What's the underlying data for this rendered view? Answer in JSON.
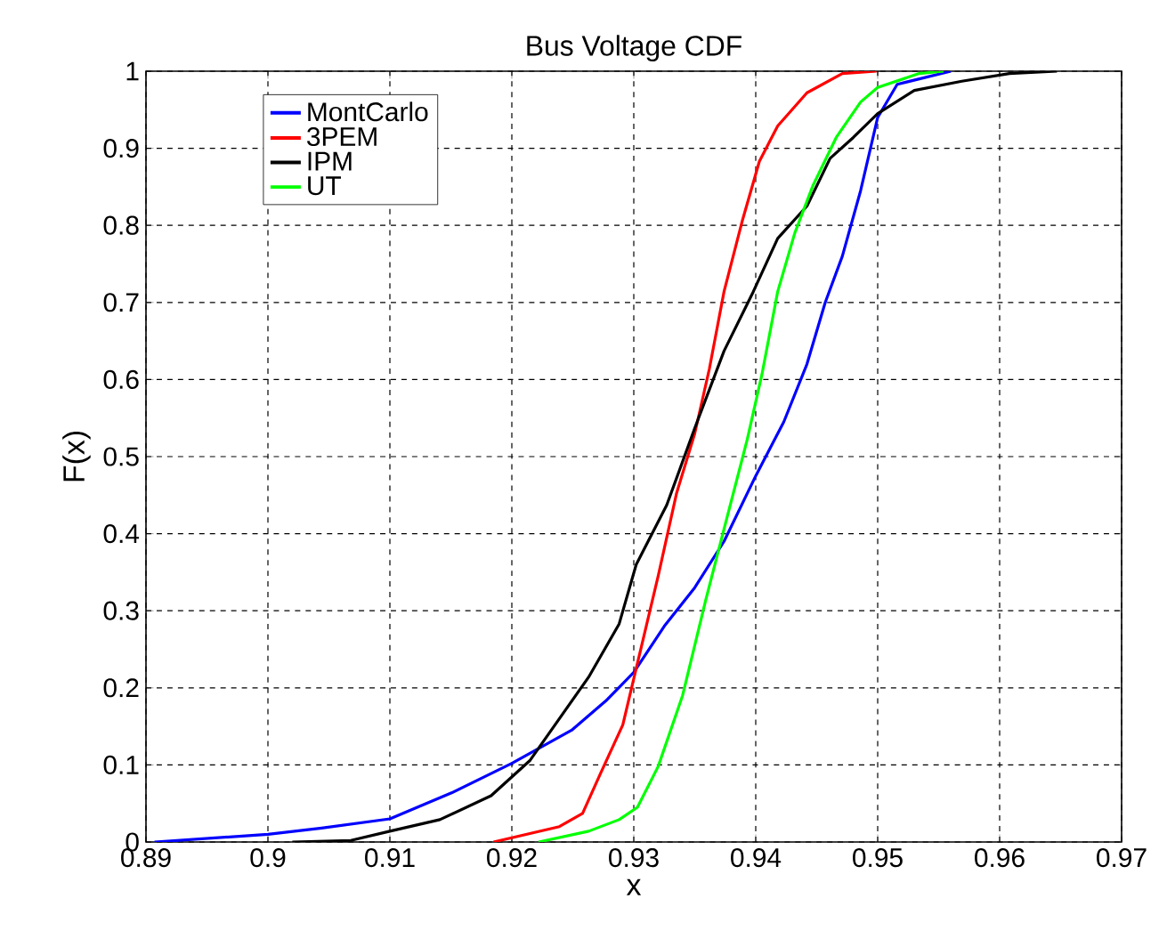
{
  "chart_data": {
    "type": "line",
    "title": "Bus Voltage CDF",
    "xlabel": "x",
    "ylabel": "F(x)",
    "xlim": [
      0.89,
      0.97
    ],
    "xticks": [
      0.89,
      0.9,
      0.91,
      0.92,
      0.93,
      0.94,
      0.95,
      0.96,
      0.97
    ],
    "ylim": [
      0,
      1
    ],
    "yticks": [
      0,
      0.1,
      0.2,
      0.3,
      0.4,
      0.5,
      0.6,
      0.7,
      0.8,
      0.9,
      1
    ],
    "grid": true,
    "legend": "top left",
    "line_style": "solid",
    "marker": "none",
    "series": [
      {
        "name": "MontCarlo",
        "color": "#0000ff",
        "x": [
          0.8907,
          0.9,
          0.9044,
          0.91,
          0.9151,
          0.92,
          0.9249,
          0.9277,
          0.93,
          0.9325,
          0.935,
          0.9374,
          0.94,
          0.9423,
          0.9442,
          0.9457,
          0.9471,
          0.9486,
          0.95,
          0.9516,
          0.956
        ],
        "values": [
          0,
          0.01,
          0.018,
          0.03,
          0.064,
          0.102,
          0.145,
          0.183,
          0.22,
          0.28,
          0.33,
          0.39,
          0.475,
          0.545,
          0.62,
          0.7,
          0.76,
          0.845,
          0.94,
          0.983,
          1
        ]
      },
      {
        "name": "3PEM",
        "color": "#ff0000",
        "x": [
          0.9185,
          0.9239,
          0.9258,
          0.9273,
          0.9291,
          0.9306,
          0.932,
          0.9335,
          0.935,
          0.9362,
          0.9374,
          0.9389,
          0.9403,
          0.9418,
          0.9442,
          0.9471,
          0.9499
        ],
        "values": [
          0,
          0.02,
          0.037,
          0.09,
          0.152,
          0.252,
          0.345,
          0.452,
          0.53,
          0.614,
          0.714,
          0.806,
          0.883,
          0.929,
          0.972,
          0.997,
          1
        ]
      },
      {
        "name": "IPM",
        "color": "#000000",
        "x": [
          0.902,
          0.9068,
          0.91,
          0.9141,
          0.9183,
          0.9215,
          0.9239,
          0.9263,
          0.9288,
          0.9302,
          0.9327,
          0.935,
          0.9374,
          0.9398,
          0.9418,
          0.9442,
          0.9461,
          0.948,
          0.95,
          0.953,
          0.9569,
          0.9608,
          0.9647
        ],
        "values": [
          0,
          0.002,
          0.014,
          0.029,
          0.06,
          0.106,
          0.16,
          0.214,
          0.283,
          0.36,
          0.437,
          0.537,
          0.637,
          0.714,
          0.783,
          0.825,
          0.887,
          0.914,
          0.945,
          0.975,
          0.987,
          0.997,
          1
        ]
      },
      {
        "name": "UT",
        "color": "#00ff00",
        "x": [
          0.9222,
          0.9263,
          0.9288,
          0.9303,
          0.932,
          0.934,
          0.9359,
          0.9374,
          0.9393,
          0.9405,
          0.9418,
          0.9432,
          0.9447,
          0.9466,
          0.9486,
          0.95,
          0.9534,
          0.9554
        ],
        "values": [
          0,
          0.014,
          0.029,
          0.045,
          0.098,
          0.19,
          0.314,
          0.406,
          0.522,
          0.606,
          0.714,
          0.79,
          0.852,
          0.914,
          0.96,
          0.979,
          0.997,
          1
        ]
      }
    ]
  }
}
